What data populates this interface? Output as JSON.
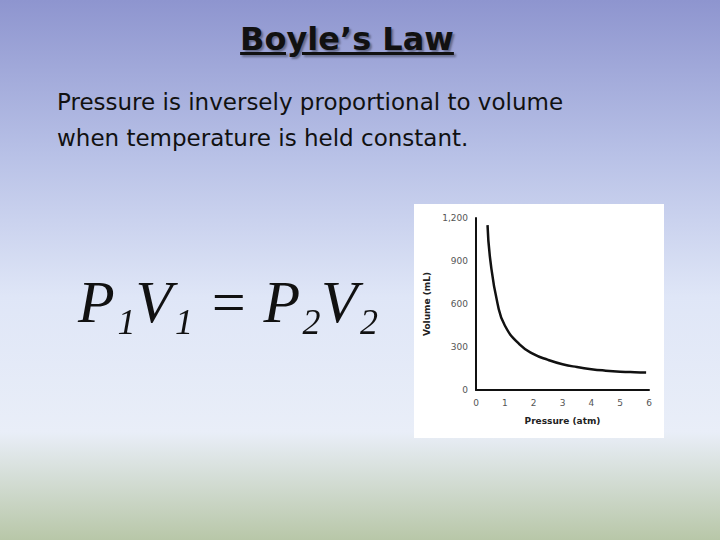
{
  "chart_data": {
    "type": "line",
    "title": "Boyle’s Law",
    "subtitle": "Pressure is inversely proportional to volume when temperature is held constant.",
    "annotations": [
      "P₁V₁ = P₂V₂"
    ],
    "x_label": "Pressure (atm)",
    "y_label": "Volume (mL)",
    "series": [
      {
        "name": "Volume",
        "color": "#111111",
        "x": [
          0.4,
          0.5,
          0.75,
          1,
          1.5,
          2,
          2.5,
          3,
          3.5,
          4,
          4.5,
          5,
          5.5,
          5.9
        ],
        "values": [
          1150,
          900,
          600,
          450,
          320,
          250,
          210,
          180,
          160,
          145,
          135,
          128,
          124,
          122
        ]
      }
    ],
    "xlim": [
      0,
      6
    ],
    "xticks": [
      0,
      1,
      2,
      3,
      4,
      5,
      6
    ],
    "ylim": [
      0,
      1200
    ],
    "yticks": [
      0,
      300,
      600,
      900,
      1200
    ],
    "grid": false,
    "marker": "none"
  }
}
